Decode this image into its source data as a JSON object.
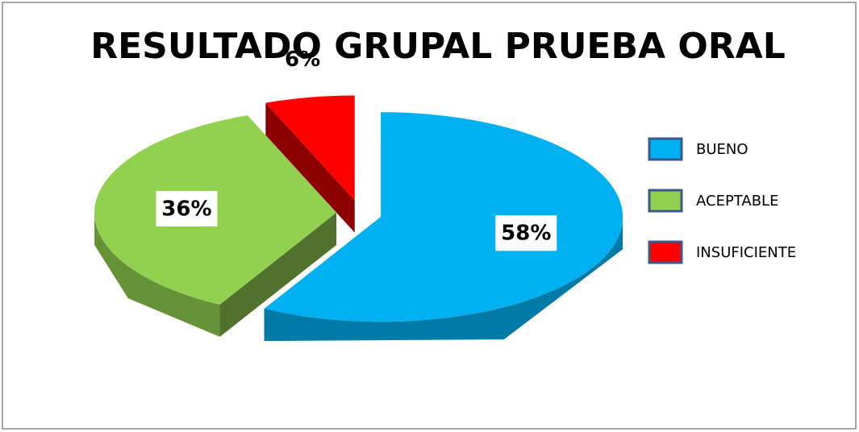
{
  "chart_data": {
    "type": "pie",
    "title": "RESULTADO GRUPAL PRUEBA ORAL",
    "categories": [
      "BUENO",
      "ACEPTABLE",
      "INSUFICIENTE"
    ],
    "values": [
      58,
      36,
      6
    ],
    "value_labels": [
      "58%",
      "36%",
      "6%"
    ],
    "colors": [
      "#00b0f0",
      "#92d050",
      "#ff0000"
    ],
    "legend": "right",
    "explode": true,
    "3d": true
  }
}
